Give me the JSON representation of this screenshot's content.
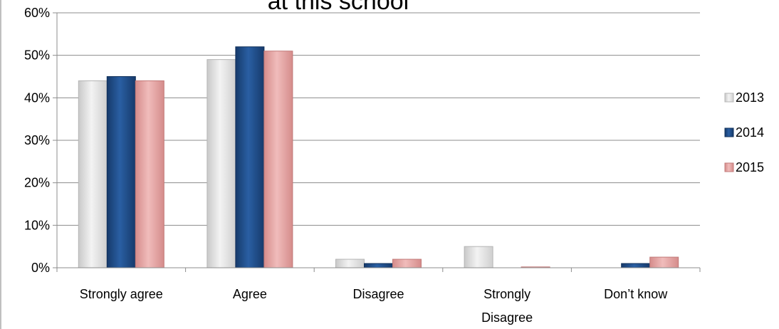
{
  "chart_data": {
    "type": "bar",
    "title": "at this school",
    "categories": [
      "Strongly agree",
      "Agree",
      "Disagree",
      "Strongly Disagree",
      "Don’t know"
    ],
    "category_lines": [
      [
        "Strongly agree"
      ],
      [
        "Agree"
      ],
      [
        "Disagree"
      ],
      [
        "Strongly",
        "Disagree"
      ],
      [
        "Don’t know"
      ]
    ],
    "series": [
      {
        "name": "2013",
        "values": [
          44,
          49,
          2,
          5,
          0
        ],
        "color": "#e4e4e4"
      },
      {
        "name": "2014",
        "values": [
          45,
          52,
          1,
          0,
          1
        ],
        "color": "#1f4e8c"
      },
      {
        "name": "2015",
        "values": [
          44,
          51,
          2,
          0.2,
          2.5
        ],
        "color": "#e3a4a3"
      }
    ],
    "ylim": [
      0,
      60
    ],
    "yticks": [
      0,
      10,
      20,
      30,
      40,
      50,
      60
    ],
    "ytick_labels": [
      "0%",
      "10%",
      "20%",
      "30%",
      "40%",
      "50%",
      "60%"
    ],
    "grid": true,
    "legend_position": "right"
  }
}
